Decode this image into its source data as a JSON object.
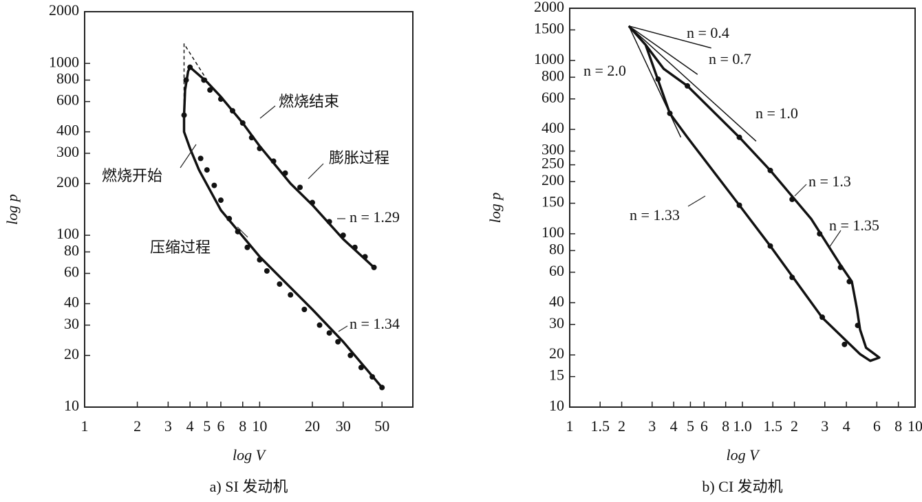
{
  "chart_data": [
    {
      "type": "line",
      "title": "a) SI 发动机",
      "xlabel": "log V",
      "ylabel": "log p",
      "log_x": true,
      "log_y": true,
      "xlim": [
        1,
        75
      ],
      "ylim": [
        10,
        2000
      ],
      "xticks": [
        1,
        2,
        3,
        4,
        5,
        6,
        8,
        10,
        20,
        30,
        50
      ],
      "yticks": [
        2000,
        1000,
        800,
        600,
        400,
        300,
        200,
        100,
        80,
        60,
        40,
        30,
        20,
        10
      ],
      "series": [
        {
          "style": "line",
          "color": "#111",
          "x": [
            50,
            30,
            20,
            10,
            6,
            4.5,
            4,
            3.7,
            3.7,
            3.75,
            3.9,
            4,
            5,
            6,
            8,
            10,
            15,
            20,
            30,
            45
          ],
          "values": [
            13,
            24,
            37,
            75,
            140,
            240,
            320,
            400,
            500,
            700,
            900,
            950,
            780,
            640,
            450,
            330,
            200,
            150,
            95,
            65
          ]
        },
        {
          "style": "dashed",
          "color": "#111",
          "x": [
            3.7,
            3.7,
            5
          ],
          "values": [
            500,
            1300,
            800
          ]
        },
        {
          "style": "points",
          "color": "#111",
          "x": [
            3.7,
            3.8,
            4.6,
            5,
            5.5,
            6,
            6.7,
            7.5,
            8.5,
            10,
            11,
            13,
            15,
            18,
            22,
            25,
            28,
            33,
            38,
            44,
            50,
            4,
            4.8,
            5.2,
            6,
            7,
            8,
            9,
            10,
            12,
            14,
            17,
            20,
            25,
            30,
            35,
            40,
            45
          ],
          "values": [
            500,
            800,
            280,
            240,
            195,
            160,
            125,
            105,
            85,
            72,
            62,
            52,
            45,
            37,
            30,
            27,
            24,
            20,
            17,
            15,
            13,
            950,
            800,
            700,
            620,
            530,
            450,
            370,
            320,
            270,
            230,
            190,
            155,
            120,
            100,
            85,
            75,
            65
          ]
        }
      ],
      "annotations": [
        "燃烧结束",
        "膨胀过程",
        "燃烧开始",
        "压缩过程",
        "n = 1.29",
        "n = 1.34"
      ]
    },
    {
      "type": "line",
      "title": "b) CI 发动机",
      "xlabel": "log V",
      "ylabel": "log p",
      "log_x": true,
      "log_y": true,
      "xlim": [
        1,
        100
      ],
      "ylim": [
        10,
        2000
      ],
      "xticks": [
        1,
        1.5,
        2,
        3,
        4,
        5,
        6,
        8,
        {
          "value": 10,
          "label": "1.0"
        },
        {
          "value": 15,
          "label": "1.5"
        },
        {
          "value": 20,
          "label": "2"
        },
        {
          "value": 30,
          "label": "3"
        },
        {
          "value": 40,
          "label": "4"
        },
        {
          "value": 60,
          "label": "6"
        },
        {
          "value": 80,
          "label": "8"
        },
        {
          "value": 100,
          "label": "10"
        }
      ],
      "yticks": [
        2000,
        1500,
        1000,
        800,
        600,
        400,
        300,
        250,
        200,
        150,
        100,
        80,
        60,
        40,
        30,
        20,
        15,
        10
      ],
      "series": [
        {
          "style": "line",
          "color": "#111",
          "x": [
            2.2,
            2.75,
            3.5,
            4.8,
            9.6,
            14.5,
            25,
            37,
            43,
            46,
            48,
            52,
            62,
            55,
            48,
            29,
            14.5,
            9.6,
            4.8,
            3.8,
            2.75,
            2.2
          ],
          "values": [
            1580,
            1230,
            894,
            713,
            360,
            232,
            122,
            66,
            53,
            37,
            28,
            22,
            19.3,
            18.5,
            20.2,
            32.8,
            85,
            146,
            360,
            495,
            1230,
            1580
          ]
        },
        {
          "style": "thin",
          "color": "#111",
          "x": [
            2.2,
            6.6
          ],
          "values": [
            1580,
            1180
          ]
        },
        {
          "style": "thin",
          "color": "#111",
          "x": [
            2.2,
            5.5
          ],
          "values": [
            1580,
            830
          ]
        },
        {
          "style": "thin",
          "color": "#111",
          "x": [
            2.2,
            12
          ],
          "values": [
            1580,
            342
          ]
        },
        {
          "style": "thin",
          "color": "#111",
          "x": [
            2.2,
            4.4
          ],
          "values": [
            1580,
            360
          ]
        },
        {
          "style": "points",
          "color": "#111",
          "x": [
            3.25,
            4.8,
            9.6,
            14.5,
            19.4,
            28,
            37,
            41.6,
            46.5,
            39,
            29,
            19.4,
            14.5,
            9.6,
            3.8
          ],
          "values": [
            780,
            713,
            360,
            232,
            158,
            100,
            64,
            53,
            29.6,
            23,
            33,
            56,
            85,
            146,
            495
          ]
        }
      ],
      "annotations": [
        "n = 0.4",
        "n = 0.7",
        "n = 2.0",
        "n = 1.0",
        "n = 1.3",
        "n = 1.35",
        "n = 1.33"
      ]
    }
  ]
}
